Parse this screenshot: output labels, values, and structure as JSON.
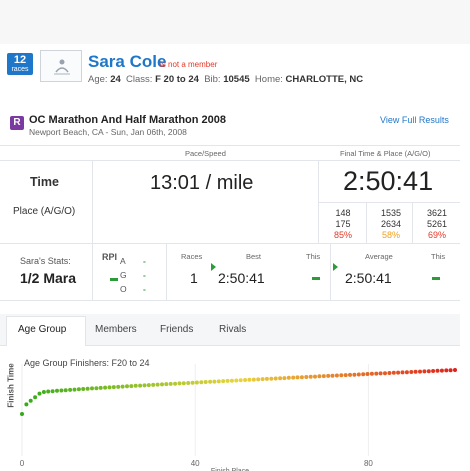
{
  "runner": {
    "races_count": "12",
    "races_label": "races",
    "name": "Sara Cole",
    "member_status": "is not a member",
    "age_label": "Age:",
    "age": "24",
    "class_label": "Class:",
    "class": "F 20 to 24",
    "bib_label": "Bib:",
    "bib": "10545",
    "home_label": "Home:",
    "home": "CHARLOTTE, NC"
  },
  "race": {
    "icon_letter": "R",
    "title": "OC Marathon And Half Marathon 2008",
    "subtitle": "Newport Beach, CA - Sun, Jan 06th, 2008",
    "view_full": "View Full Results"
  },
  "results": {
    "pace_header": "Pace/Speed",
    "final_header": "Final Time & Place (A/G/O)",
    "time_label": "Time",
    "place_label": "Place (A/G/O)",
    "pace": "13:01 / mile",
    "final_time": "2:50:41",
    "places": [
      {
        "place": "148",
        "of": "175",
        "pct": "85%"
      },
      {
        "place": "1535",
        "of": "2634",
        "pct": "58%"
      },
      {
        "place": "3621",
        "of": "5261",
        "pct": "69%"
      }
    ]
  },
  "stats": {
    "label": "Sara's Stats:",
    "distance": "1/2 Mara",
    "rpi_label": "RPI",
    "rpi_rows": [
      {
        "letter": "A",
        "value": "-"
      },
      {
        "letter": "G",
        "value": "-"
      },
      {
        "letter": "O",
        "value": "-"
      }
    ],
    "races_head": "Races",
    "races": "1",
    "best_head": "Best",
    "best": "2:50:41",
    "this_head": "This",
    "average_head": "Average",
    "average": "2:50:41",
    "this_head2": "This"
  },
  "tabs": [
    "Age Group",
    "Members",
    "Friends",
    "Rivals"
  ],
  "chart_data": {
    "type": "scatter",
    "title": "Age Group Finishers: F20 to 24",
    "ylabel": "Finish Time",
    "xlabel": "Finish Place",
    "x_ticks": [
      "0",
      "40",
      "80"
    ],
    "xlim": [
      0,
      100
    ],
    "count": 100,
    "colors": {
      "start": "#33aa1a",
      "mid": "#e9d53c",
      "end": "#e0201b"
    }
  }
}
